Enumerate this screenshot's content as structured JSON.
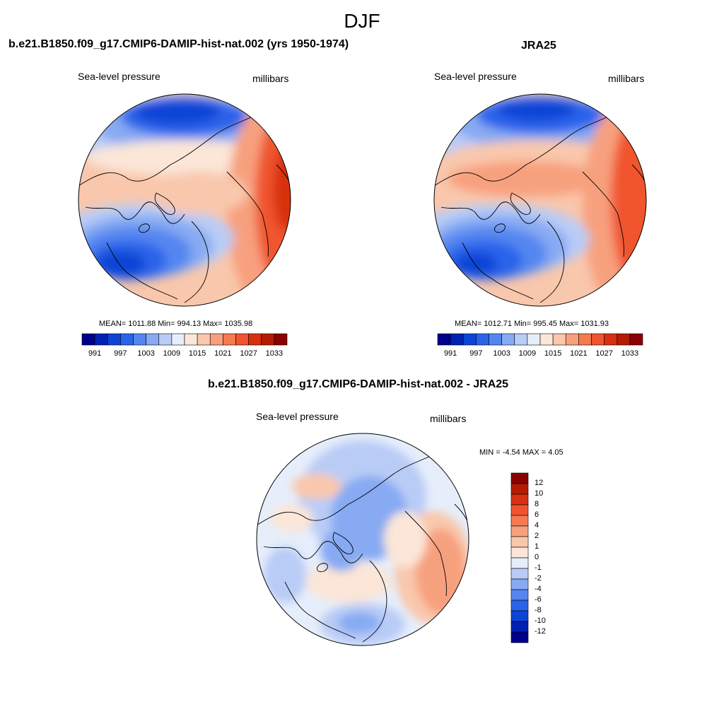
{
  "main_title": "DJF",
  "panels": [
    {
      "title": "b.e21.B1850.f09_g17.CMIP6-DAMIP-hist-nat.002 (yrs 1950-1974)",
      "left_label": "Sea-level pressure",
      "right_label": "millibars",
      "stats": "MEAN= 1011.88  Min= 994.13  Max= 1035.98",
      "colorbar_ticks": [
        "991",
        "997",
        "1003",
        "1009",
        "1015",
        "1021",
        "1027",
        "1033"
      ]
    },
    {
      "title": "JRA25",
      "left_label": "Sea-level pressure",
      "right_label": "millibars",
      "stats": "MEAN= 1012.71  Min= 995.45  Max= 1031.93",
      "colorbar_ticks": [
        "991",
        "997",
        "1003",
        "1009",
        "1015",
        "1021",
        "1027",
        "1033"
      ]
    },
    {
      "title": "b.e21.B1850.f09_g17.CMIP6-DAMIP-hist-nat.002 - JRA25",
      "left_label": "Sea-level pressure",
      "right_label": "millibars",
      "stats": "MIN =  -4.54 MAX =   4.05",
      "colorbar_ticks": [
        "12",
        "10",
        "8",
        "6",
        "4",
        "2",
        "1",
        "0",
        "-1",
        "-2",
        "-4",
        "-6",
        "-8",
        "-10",
        "-12"
      ]
    }
  ],
  "colors": {
    "abs_palette": [
      "#00008b",
      "#0022b3",
      "#0d44d6",
      "#2a63ea",
      "#5586f0",
      "#87aaf3",
      "#b9ccf6",
      "#e6eefb",
      "#fbe6d8",
      "#f9c7ac",
      "#f7a07e",
      "#f47a52",
      "#f0542e",
      "#d83010",
      "#b31c02",
      "#8b0000"
    ],
    "diff_palette": [
      "#8b0000",
      "#b31c02",
      "#d83010",
      "#f0542e",
      "#f47a52",
      "#f7a07e",
      "#f9c7ac",
      "#fbe6d8",
      "#e6eefb",
      "#b9ccf6",
      "#87aaf3",
      "#5586f0",
      "#2a63ea",
      "#0d44d6",
      "#0022b3",
      "#00008b"
    ]
  }
}
